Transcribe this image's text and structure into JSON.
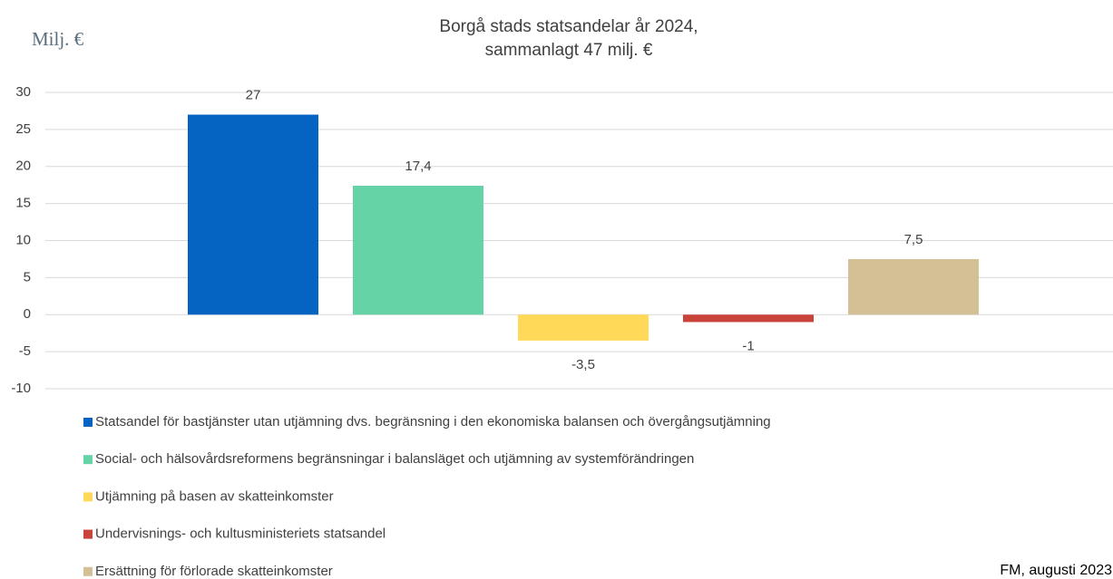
{
  "chart_data": {
    "type": "bar",
    "title": "Borgå stads statsandelar år 2024,",
    "subtitle": "sammanlagt 47 milj. €",
    "ylabel": "Milj. €",
    "source": "FM, augusti 2023",
    "series": [
      {
        "name": "Statsandel för bastjänster utan utjämning dvs. begränsning i den ekonomiska balansen och övergångsutjämning",
        "color": "#0563c1",
        "values": [
          27
        ]
      },
      {
        "name": "Social- och hälsovårdsreformens begränsningar i balansläget och utjämning av systemförändringen",
        "color": "#66d3a6",
        "values": [
          17.4
        ],
        "value_labels": [
          "17,4"
        ]
      },
      {
        "name": "Utjämning på basen av skatteinkomster",
        "color": "#ffd957",
        "values": [
          -3.5
        ],
        "value_labels": [
          "-3,5"
        ]
      },
      {
        "name": "Undervisnings- och kultusministeriets statsandel",
        "color": "#c9433b",
        "values": [
          -1
        ]
      },
      {
        "name": "Ersättning för förlorade skatteinkomster",
        "color": "#d4c095",
        "values": [
          7.5
        ],
        "value_labels": [
          "7,5"
        ]
      }
    ],
    "ylim": [
      -10,
      30
    ],
    "yticks": [
      -10,
      -5,
      0,
      5,
      10,
      15,
      20,
      25,
      30
    ],
    "grid": true,
    "legend": "bottom"
  }
}
